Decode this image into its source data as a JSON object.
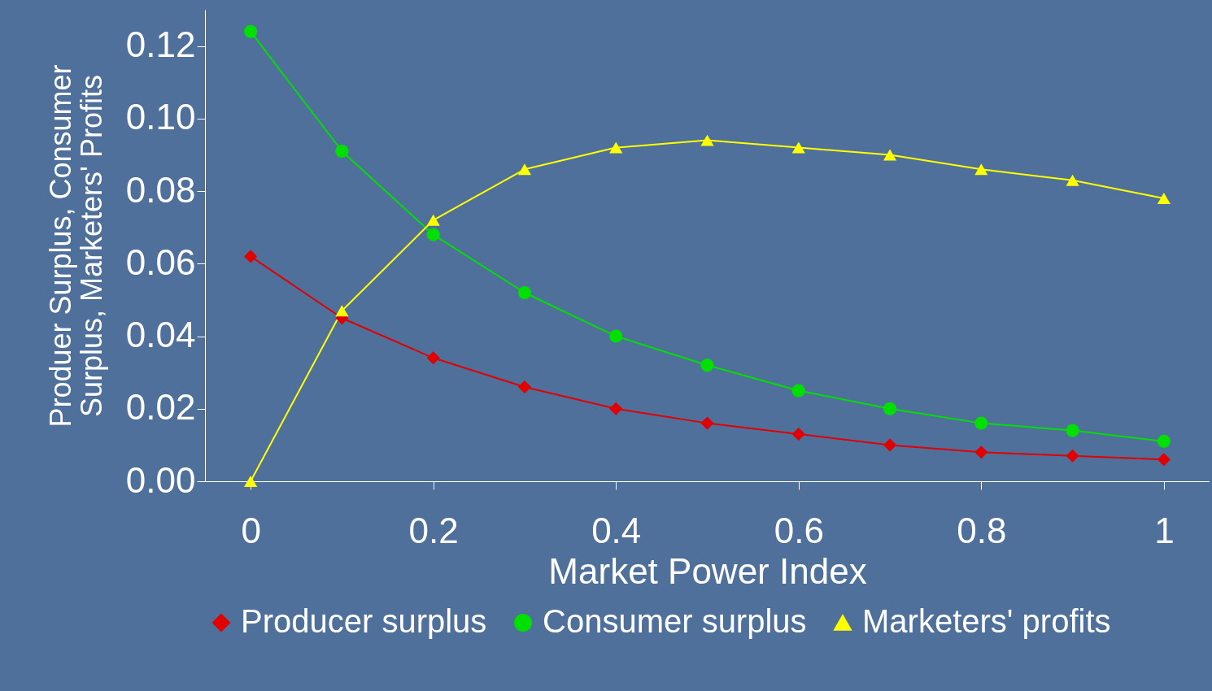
{
  "chart_data": {
    "type": "line",
    "xlabel": "Market Power Index",
    "ylabel": "Produer Surplus, Consumer\nSurplus, Marketers' Profits",
    "x": [
      0,
      0.1,
      0.2,
      0.3,
      0.4,
      0.5,
      0.6,
      0.7,
      0.8,
      0.9,
      1
    ],
    "xlim": [
      -0.05,
      1.05
    ],
    "xticks": [
      0,
      0.2,
      0.4,
      0.6,
      0.8,
      1
    ],
    "ylim": [
      0,
      0.13
    ],
    "yticks": [
      {
        "value": 0,
        "label": "0.00"
      },
      {
        "value": 0.02,
        "label": "0.02"
      },
      {
        "value": 0.04,
        "label": "0.04"
      },
      {
        "value": 0.06,
        "label": "0.06"
      },
      {
        "value": 0.08,
        "label": "0.08"
      },
      {
        "value": 0.1,
        "label": "0.10"
      },
      {
        "value": 0.12,
        "label": "0.12"
      }
    ],
    "grid": false,
    "legend": "bottom",
    "series": [
      {
        "name": "Producer surplus",
        "color": "#e00000",
        "marker": "diamond",
        "values": [
          0.062,
          0.045,
          0.034,
          0.026,
          0.02,
          0.016,
          0.013,
          0.01,
          0.008,
          0.007,
          0.006
        ]
      },
      {
        "name": "Consumer surplus",
        "color": "#00e000",
        "marker": "circle",
        "values": [
          0.124,
          0.091,
          0.068,
          0.052,
          0.04,
          0.032,
          0.025,
          0.02,
          0.016,
          0.014,
          0.011
        ]
      },
      {
        "name": "Marketers' profits",
        "color": "#ffff00",
        "marker": "triangle",
        "values": [
          0,
          0.047,
          0.072,
          0.086,
          0.092,
          0.094,
          0.092,
          0.09,
          0.086,
          0.083,
          0.078
        ]
      }
    ]
  }
}
